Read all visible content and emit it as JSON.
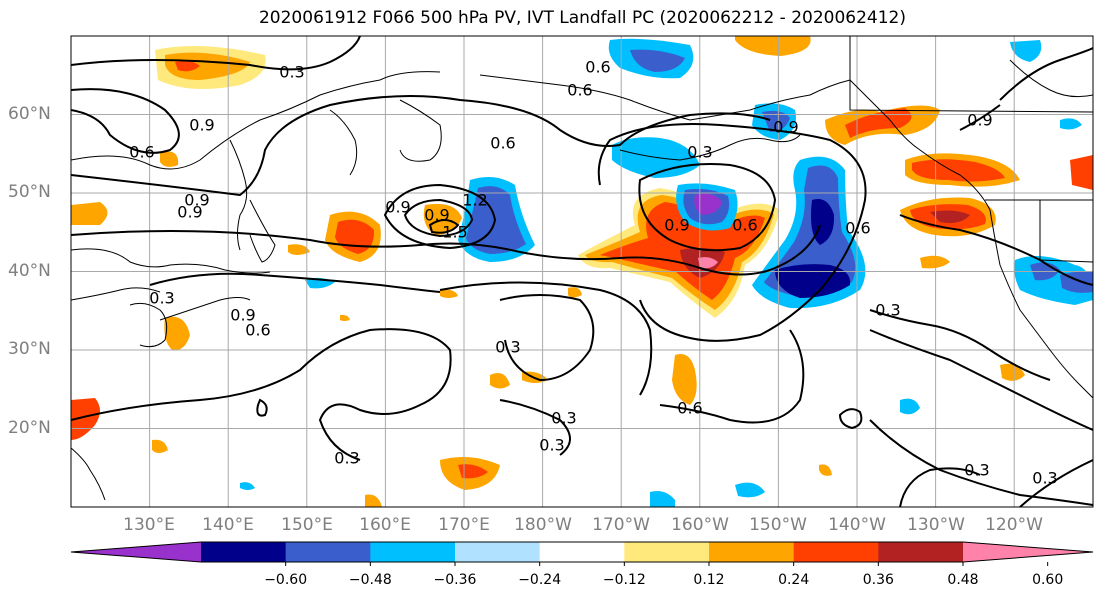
{
  "title": "2020061912 F066 500 hPa PV, IVT Landfall PC (2020062212 - 2020062412)",
  "lat_labels": [
    "60°N",
    "50°N",
    "40°N",
    "30°N",
    "20°N"
  ],
  "lon_labels": [
    "130°E",
    "140°E",
    "150°E",
    "160°E",
    "170°E",
    "180°W",
    "170°W",
    "160°W",
    "150°W",
    "140°W",
    "130°W",
    "120°W"
  ],
  "contour_labels": [
    "0.3",
    "0.6",
    "0.9",
    "0.9",
    "0.9",
    "0.6",
    "0.6",
    "0.9",
    "0.9",
    "1.5",
    "1.2",
    "0.6",
    "0.9",
    "0.6",
    "0.9",
    "0.9",
    "0.6",
    "0.3",
    "0.9",
    "0.6",
    "0.3",
    "0.3",
    "0.3",
    "0.6",
    "0.3",
    "0.3",
    "0.3",
    "0.3",
    "0.3"
  ],
  "colorbar": {
    "tick_labels": [
      "−0.60",
      "−0.48",
      "−0.36",
      "−0.24",
      "−0.12",
      "0.12",
      "0.24",
      "0.36",
      "0.48",
      "0.60"
    ],
    "colors": [
      "#9932cc",
      "#00008b",
      "#3a5fcd",
      "#00bfff",
      "#b0e2ff",
      "#ffffff",
      "#ffe87c",
      "#ffa500",
      "#ff4000",
      "#b22222",
      "#ff82ab"
    ]
  },
  "chart_data": {
    "type": "heatmap",
    "field_filled": "IVT Landfall PC",
    "field_contoured": "500 hPa PV",
    "lat_range": [
      10,
      70
    ],
    "lon_range": [
      121,
      251
    ],
    "levels": [
      -0.6,
      -0.48,
      -0.36,
      -0.24,
      -0.12,
      0.12,
      0.24,
      0.36,
      0.48,
      0.6
    ],
    "contour_levels": [
      0.3,
      0.6,
      0.9,
      1.2,
      1.5
    ]
  }
}
